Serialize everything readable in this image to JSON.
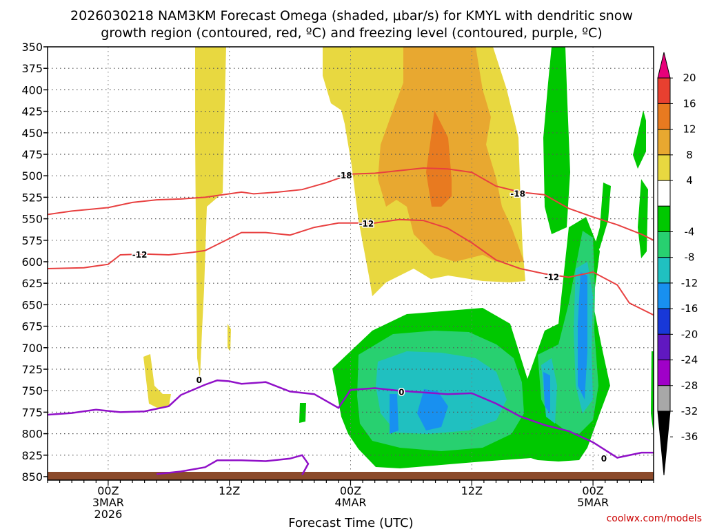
{
  "chart_data": {
    "type": "heatmap",
    "title_lines": [
      "2026030218 NAM3KM Forecast Omega (shaded, μbar/s) for KMYL with dendritic snow",
      "growth region (contoured, red, ºC) and freezing level (contoured, purple, ºC)"
    ],
    "xlabel": "Forecast Time (UTC)",
    "watermark": "coolwx.com/models",
    "y_ticks": [
      350,
      375,
      400,
      425,
      450,
      475,
      500,
      525,
      550,
      575,
      600,
      625,
      650,
      675,
      700,
      725,
      750,
      775,
      800,
      825,
      850
    ],
    "ylim_hpa": [
      350,
      850
    ],
    "x_range_hours": [
      -5,
      45
    ],
    "x_ticks": [
      {
        "hour": 0,
        "lines": [
          "00Z",
          "3MAR",
          "2026"
        ]
      },
      {
        "hour": 10,
        "lines": [
          "12Z"
        ]
      },
      {
        "hour": 20,
        "lines": [
          "00Z",
          "4MAR"
        ]
      },
      {
        "hour": 30,
        "lines": [
          "12Z"
        ]
      },
      {
        "hour": 40,
        "lines": [
          "00Z",
          "5MAR"
        ]
      }
    ],
    "colorbar": {
      "labels": [
        "20",
        "16",
        "12",
        "8",
        "4",
        "-4",
        "-8",
        "-12",
        "-16",
        "-20",
        "-24",
        "-28",
        "-32",
        "-36"
      ],
      "colors": [
        "#e8007a",
        "#e84030",
        "#e87a20",
        "#e8a830",
        "#e8d840",
        "#ffffff",
        "#00c800",
        "#28d070",
        "#20c0c0",
        "#1890f0",
        "#1838d8",
        "#6018c0",
        "#a000c8",
        "#a8a8a8",
        "#000000"
      ]
    },
    "colors": {
      "ground": "#8b4a2b",
      "dgz_contour": "#e84040",
      "freezing_contour": "#9010c8",
      "omega_pos_light": "#e8d840",
      "omega_pos_mid": "#e8a830",
      "omega_pos_strong": "#e87a20",
      "omega_neg_light": "#00c800",
      "omega_neg_mid": "#28d070",
      "omega_neg_strong": "#20c0c0",
      "omega_neg_max": "#1890f0"
    },
    "contours": {
      "dgz_minus18": {
        "label": "-18",
        "points": [
          [
            -5,
            545
          ],
          [
            -3,
            541
          ],
          [
            0,
            537
          ],
          [
            2,
            531
          ],
          [
            4,
            528
          ],
          [
            6,
            527
          ],
          [
            8,
            525
          ],
          [
            10,
            521
          ],
          [
            11,
            519
          ],
          [
            12,
            521
          ],
          [
            14,
            519
          ],
          [
            16,
            516
          ],
          [
            18,
            508
          ],
          [
            20,
            498
          ],
          [
            22,
            497
          ],
          [
            24,
            494
          ],
          [
            26,
            491
          ],
          [
            28,
            492
          ],
          [
            30,
            496
          ],
          [
            32,
            512
          ],
          [
            34,
            519
          ],
          [
            36,
            522
          ],
          [
            38,
            538
          ],
          [
            40,
            548
          ],
          [
            42,
            557
          ],
          [
            44,
            568
          ],
          [
            45,
            575
          ]
        ],
        "label_at": [
          19.5,
          500
        ]
      },
      "dgz_minus18_b_label": {
        "label": "-18",
        "label_at": [
          33.8,
          521
        ]
      },
      "dgz_minus12": {
        "label": "-12",
        "points": [
          [
            -5,
            608
          ],
          [
            -2,
            607
          ],
          [
            0,
            603
          ],
          [
            1,
            592
          ],
          [
            3,
            591
          ],
          [
            5,
            592
          ],
          [
            7,
            589
          ],
          [
            8,
            587
          ],
          [
            9,
            580
          ],
          [
            11,
            566
          ],
          [
            13,
            566
          ],
          [
            15,
            569
          ],
          [
            17,
            560
          ],
          [
            19,
            555
          ],
          [
            20,
            555
          ],
          [
            22,
            555
          ],
          [
            24,
            551
          ],
          [
            26,
            552
          ],
          [
            28,
            561
          ],
          [
            30,
            578
          ],
          [
            32,
            598
          ],
          [
            34,
            608
          ],
          [
            36,
            614
          ],
          [
            38,
            618
          ],
          [
            40,
            612
          ],
          [
            42,
            627
          ],
          [
            43,
            648
          ],
          [
            45,
            662
          ]
        ],
        "label_at": [
          2.6,
          592
        ]
      },
      "dgz_minus12_b_label": {
        "label": "-12",
        "label_at": [
          21.3,
          556
        ]
      },
      "dgz_minus12_c_label": {
        "label": "-12",
        "label_at": [
          36.6,
          618
        ]
      },
      "freezing_0": {
        "label": "0",
        "points": [
          [
            -5,
            778
          ],
          [
            -3,
            776
          ],
          [
            -1,
            772
          ],
          [
            1,
            775
          ],
          [
            3,
            774
          ],
          [
            5,
            768
          ],
          [
            6,
            755
          ],
          [
            8,
            743
          ],
          [
            9,
            738
          ],
          [
            10,
            739
          ],
          [
            11,
            742
          ],
          [
            13,
            740
          ],
          [
            15,
            751
          ],
          [
            17,
            754
          ],
          [
            19,
            770
          ],
          [
            20,
            749
          ],
          [
            22,
            747
          ],
          [
            24,
            750
          ],
          [
            26,
            752
          ],
          [
            28,
            754
          ],
          [
            30,
            753
          ],
          [
            32,
            765
          ],
          [
            34,
            780
          ],
          [
            36,
            790
          ],
          [
            38,
            797
          ],
          [
            40,
            810
          ],
          [
            42,
            828
          ],
          [
            44,
            822
          ],
          [
            45,
            822
          ]
        ],
        "label_at": [
          7.5,
          738
        ]
      },
      "freezing_0_b_label": {
        "label": "0",
        "label_at": [
          24.2,
          752
        ]
      },
      "freezing_0_c_label": {
        "label": "0",
        "label_at": [
          40.9,
          829
        ]
      },
      "freezing_0_low": {
        "points": [
          [
            4,
            847
          ],
          [
            6,
            844
          ],
          [
            8,
            839
          ],
          [
            9,
            831
          ],
          [
            11,
            831
          ],
          [
            13,
            832
          ],
          [
            15,
            829
          ],
          [
            16,
            825
          ],
          [
            16.5,
            835
          ],
          [
            16,
            848
          ]
        ]
      }
    }
  }
}
